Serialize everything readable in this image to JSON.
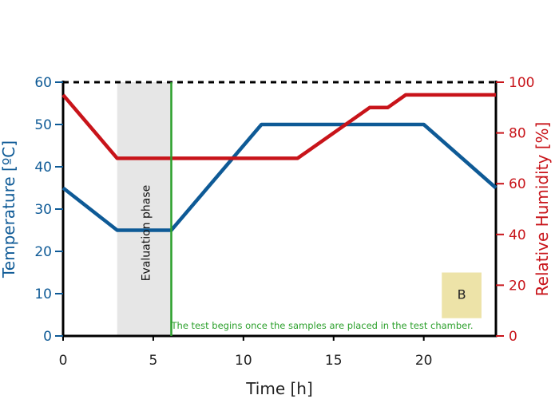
{
  "chart_data": {
    "type": "line",
    "xlabel": "Time [h]",
    "ylabel_left": "Temperature [ºC]",
    "ylabel_right": "Relative Humidity [%]",
    "xlim": [
      0,
      24
    ],
    "ylim_left": [
      0,
      60
    ],
    "ylim_right": [
      0,
      100
    ],
    "xticks": [
      "0",
      "5",
      "10",
      "15",
      "20"
    ],
    "xtick_values": [
      0,
      5,
      10,
      15,
      20
    ],
    "yticks_left": [
      "0",
      "10",
      "20",
      "30",
      "40",
      "50",
      "60"
    ],
    "ytick_values_left": [
      0,
      10,
      20,
      30,
      40,
      50,
      60
    ],
    "yticks_right": [
      "0",
      "20",
      "40",
      "60",
      "80",
      "100"
    ],
    "ytick_values_right": [
      0,
      20,
      40,
      60,
      80,
      100
    ],
    "grid": false,
    "series": [
      {
        "axis": "left",
        "color": "#0e5a96",
        "x": [
          0,
          3,
          6,
          11,
          20,
          24
        ],
        "y": [
          35,
          25,
          25,
          50,
          50,
          35
        ]
      },
      {
        "axis": "right",
        "color": "#c8141a",
        "x": [
          0,
          3,
          13,
          17,
          18,
          19,
          24
        ],
        "y": [
          95,
          70,
          70,
          90,
          90,
          95,
          95
        ]
      }
    ],
    "shaded_region": {
      "x0": 3,
      "x1": 6,
      "color": "#e6e6e6",
      "label": "Evaluation phase"
    },
    "vertical_line": {
      "x": 6,
      "color": "#2ca02c"
    },
    "reference_line": {
      "axis": "left",
      "y": 60,
      "style": "dashed",
      "color": "#000000"
    },
    "annotations": [
      {
        "text": "The test begins once the samples are placed in the test chamber.",
        "x": 6,
        "y_left": 2.5,
        "color": "#2ca02c"
      },
      {
        "text": "B",
        "x": 22,
        "y_right": 16,
        "box_color": "#ede3a8",
        "box_x": [
          21,
          23.2
        ],
        "box_y_right": [
          7,
          25
        ]
      }
    ]
  }
}
